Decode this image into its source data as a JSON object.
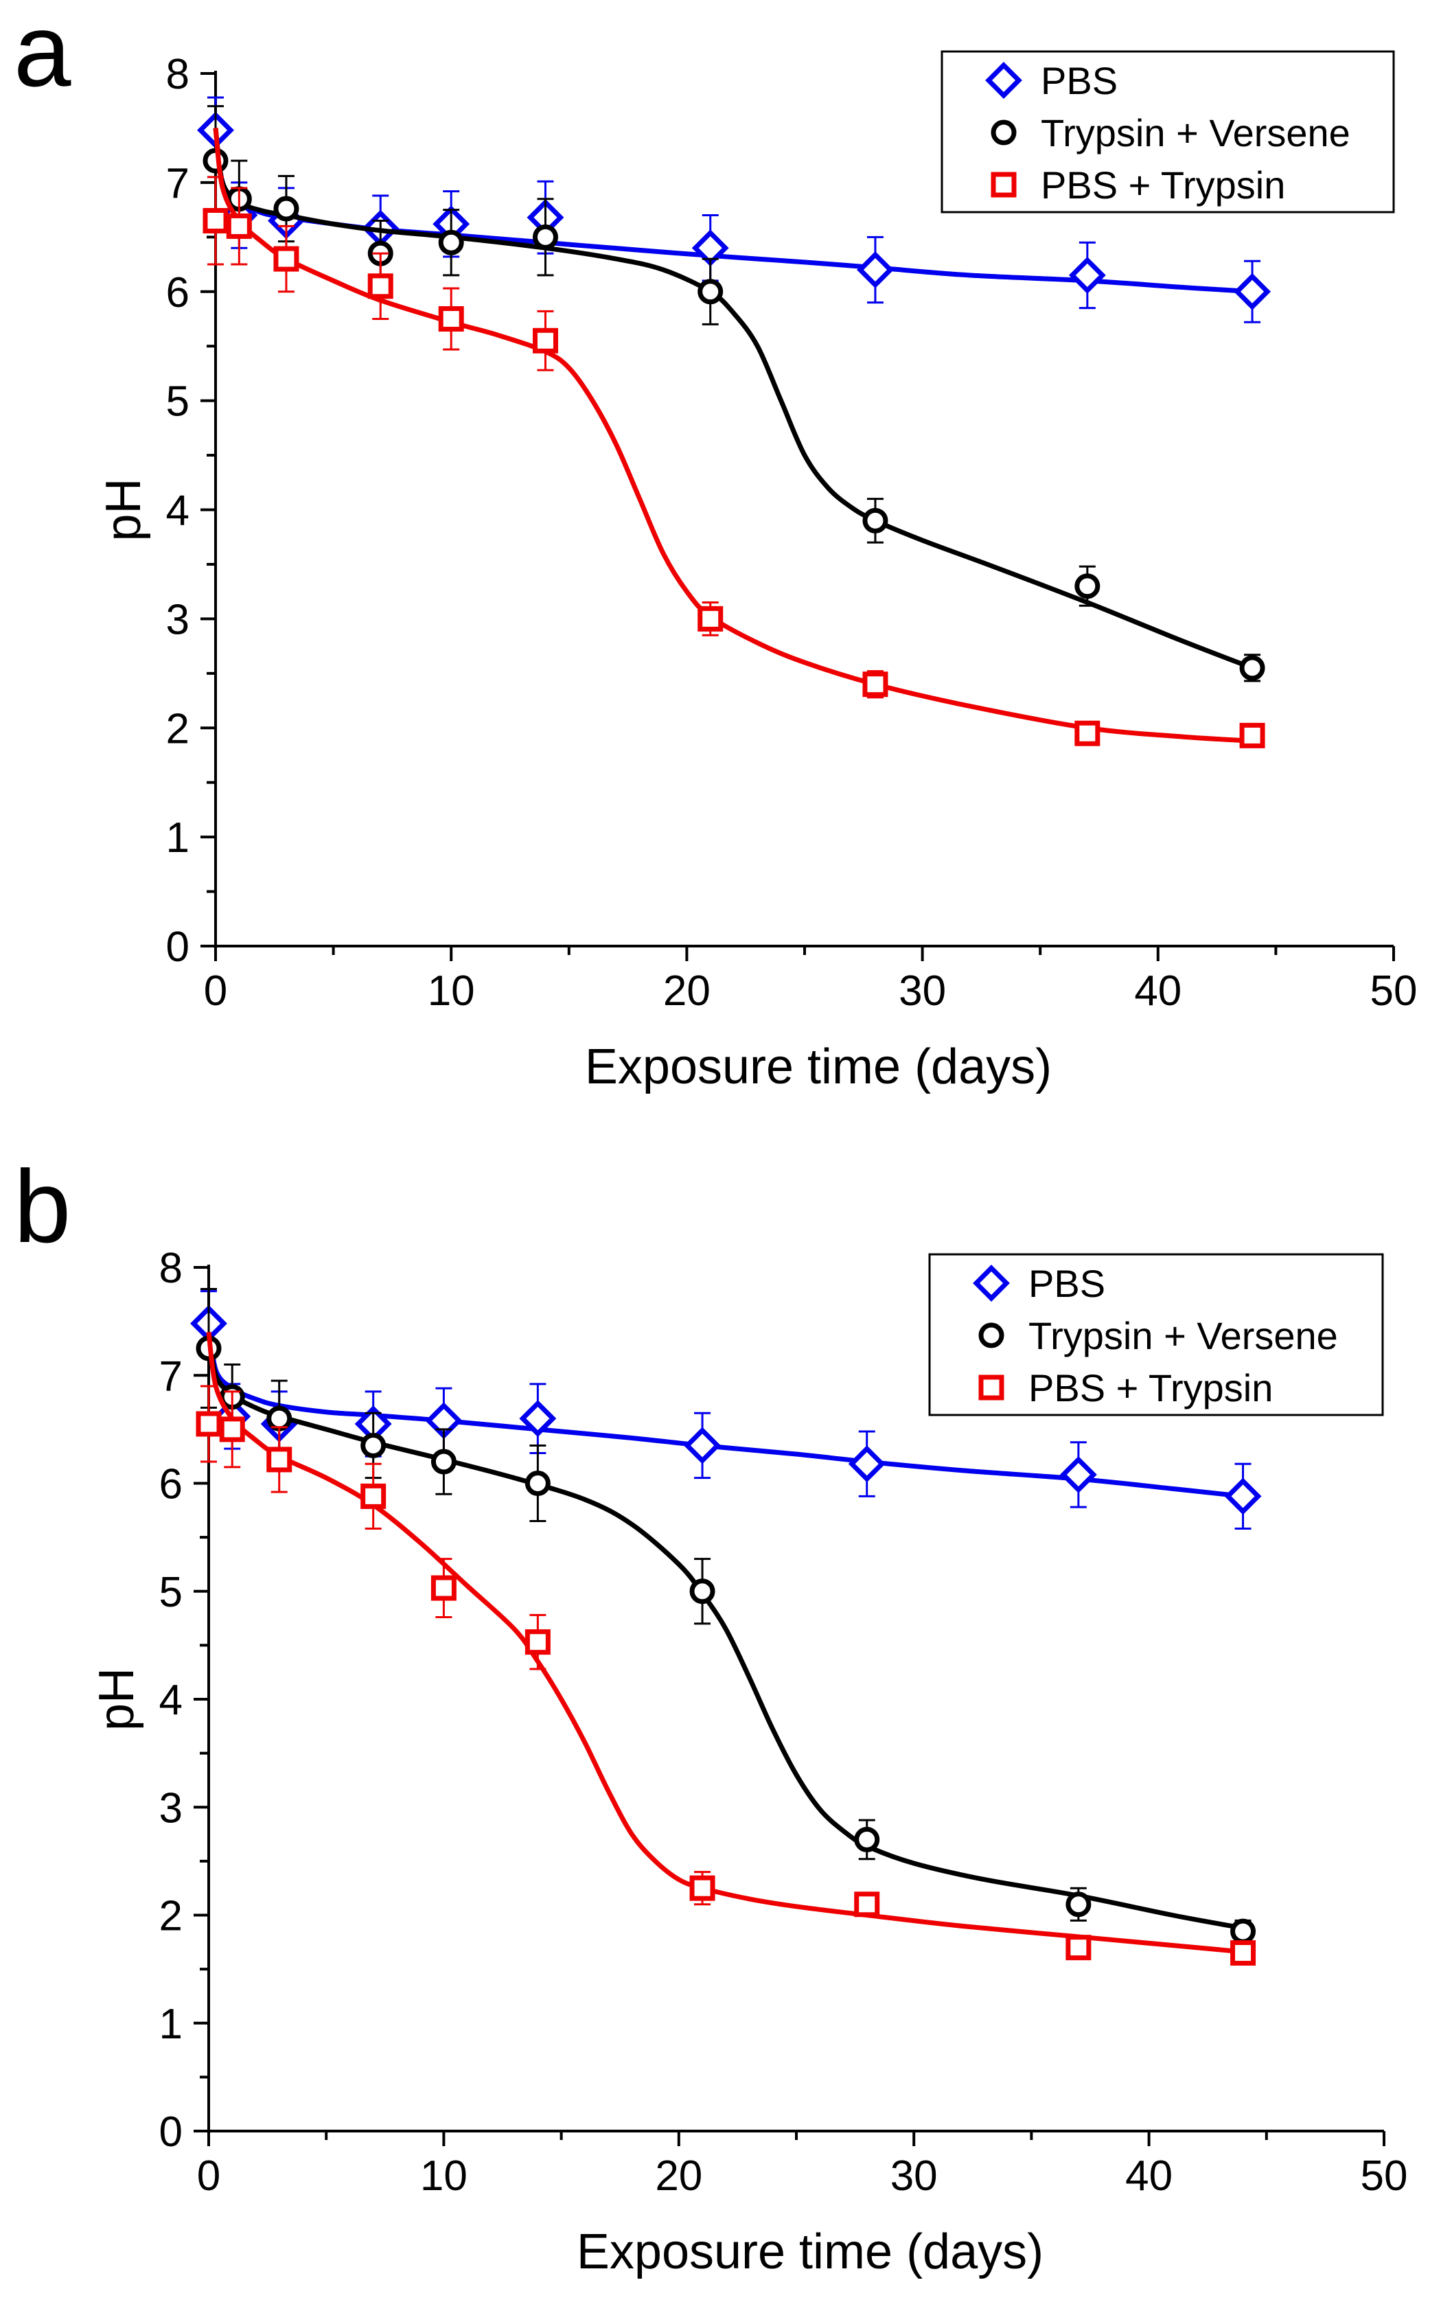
{
  "chart_data": [
    {
      "panel_label": "a",
      "type": "line",
      "title": "",
      "xlabel": "Exposure time (days)",
      "ylabel": "pH",
      "xlim": [
        0,
        50
      ],
      "ylim": [
        0,
        8
      ],
      "xticks": [
        "0",
        "10",
        "20",
        "30",
        "40",
        "50"
      ],
      "yticks": [
        "0",
        "1",
        "2",
        "3",
        "4",
        "5",
        "6",
        "7",
        "8"
      ],
      "legend_position": "top-right",
      "series": [
        {
          "name": "PBS",
          "color": "#0000ee",
          "marker": "diamond",
          "x": [
            0,
            1,
            3,
            7,
            10,
            14,
            21,
            28,
            37,
            44
          ],
          "y": [
            7.48,
            6.7,
            6.65,
            6.58,
            6.62,
            6.68,
            6.4,
            6.2,
            6.15,
            6.0
          ],
          "err": [
            0.3,
            0.3,
            0.3,
            0.3,
            0.3,
            0.33,
            0.3,
            0.3,
            0.3,
            0.28
          ],
          "fit_x": [
            0,
            0.3,
            1,
            2,
            3,
            5,
            7,
            10,
            14,
            18,
            21,
            25,
            28,
            32,
            37,
            41,
            44
          ],
          "fit_y": [
            7.5,
            7.0,
            6.82,
            6.72,
            6.68,
            6.62,
            6.57,
            6.52,
            6.45,
            6.38,
            6.33,
            6.27,
            6.22,
            6.15,
            6.1,
            6.04,
            6.0
          ]
        },
        {
          "name": "Trypsin + Versene",
          "color": "#000000",
          "marker": "circle",
          "x": [
            0,
            1,
            3,
            7,
            10,
            14,
            21,
            28,
            37,
            44
          ],
          "y": [
            7.2,
            6.85,
            6.76,
            6.35,
            6.45,
            6.5,
            6.0,
            3.9,
            3.3,
            2.55
          ],
          "err": [
            0.5,
            0.35,
            0.3,
            0.3,
            0.3,
            0.35,
            0.3,
            0.2,
            0.18,
            0.12
          ],
          "fit_x": [
            0,
            0.3,
            1,
            2,
            3,
            5,
            7,
            10,
            14,
            17,
            19,
            21,
            22,
            23,
            24,
            25,
            26,
            27,
            28,
            30,
            33,
            37,
            41,
            44
          ],
          "fit_y": [
            7.5,
            7.0,
            6.82,
            6.74,
            6.7,
            6.62,
            6.56,
            6.5,
            6.4,
            6.3,
            6.2,
            6.0,
            5.8,
            5.5,
            5.0,
            4.5,
            4.2,
            4.02,
            3.9,
            3.72,
            3.48,
            3.15,
            2.8,
            2.55
          ]
        },
        {
          "name": "PBS + Trypsin",
          "color": "#ee0000",
          "marker": "square",
          "x": [
            0,
            1,
            3,
            7,
            10,
            14,
            21,
            28,
            37,
            44
          ],
          "y": [
            6.65,
            6.6,
            6.3,
            6.05,
            5.75,
            5.55,
            3.0,
            2.4,
            1.95,
            1.93
          ],
          "err": [
            0.4,
            0.35,
            0.3,
            0.3,
            0.28,
            0.27,
            0.15,
            0.12,
            0.1,
            0.08
          ],
          "fit_x": [
            0,
            0.3,
            1,
            2,
            3,
            5,
            7,
            10,
            12,
            14,
            15,
            16,
            17,
            18,
            19,
            20,
            21,
            23,
            25,
            28,
            32,
            37,
            41,
            44
          ],
          "fit_y": [
            7.5,
            6.95,
            6.65,
            6.45,
            6.3,
            6.1,
            5.92,
            5.72,
            5.6,
            5.45,
            5.3,
            5.0,
            4.6,
            4.1,
            3.6,
            3.25,
            3.02,
            2.78,
            2.6,
            2.4,
            2.2,
            2.0,
            1.92,
            1.88
          ]
        }
      ]
    },
    {
      "panel_label": "b",
      "type": "line",
      "title": "",
      "xlabel": "Exposure time (days)",
      "ylabel": "pH",
      "xlim": [
        0,
        50
      ],
      "ylim": [
        0,
        8
      ],
      "xticks": [
        "0",
        "10",
        "20",
        "30",
        "40",
        "50"
      ],
      "yticks": [
        "0",
        "1",
        "2",
        "3",
        "4",
        "5",
        "6",
        "7",
        "8"
      ],
      "legend_position": "top-right",
      "series": [
        {
          "name": "PBS",
          "color": "#0000ee",
          "marker": "diamond",
          "x": [
            0,
            1,
            3,
            7,
            10,
            14,
            21,
            28,
            37,
            44
          ],
          "y": [
            7.48,
            6.62,
            6.55,
            6.55,
            6.58,
            6.6,
            6.35,
            6.18,
            6.08,
            5.88
          ],
          "err": [
            0.3,
            0.3,
            0.3,
            0.3,
            0.3,
            0.32,
            0.3,
            0.3,
            0.3,
            0.3
          ],
          "fit_x": [
            0,
            0.3,
            1,
            2,
            3,
            5,
            7,
            10,
            14,
            18,
            21,
            25,
            28,
            32,
            37,
            41,
            44
          ],
          "fit_y": [
            7.5,
            7.05,
            6.88,
            6.78,
            6.72,
            6.66,
            6.63,
            6.58,
            6.5,
            6.42,
            6.35,
            6.27,
            6.2,
            6.12,
            6.04,
            5.95,
            5.88
          ]
        },
        {
          "name": "Trypsin + Versene",
          "color": "#000000",
          "marker": "circle",
          "x": [
            0,
            1,
            3,
            7,
            10,
            14,
            21,
            28,
            37,
            44
          ],
          "y": [
            7.25,
            6.8,
            6.6,
            6.35,
            6.2,
            6.0,
            5.0,
            2.7,
            2.1,
            1.85
          ],
          "err": [
            0.55,
            0.3,
            0.35,
            0.3,
            0.3,
            0.35,
            0.3,
            0.18,
            0.15,
            0.1
          ],
          "fit_x": [
            0,
            0.3,
            1,
            2,
            3,
            5,
            7,
            10,
            13,
            16,
            18,
            20,
            21,
            22,
            23,
            24,
            25,
            26,
            27,
            28,
            30,
            33,
            37,
            41,
            44
          ],
          "fit_y": [
            7.4,
            7.0,
            6.82,
            6.7,
            6.62,
            6.5,
            6.38,
            6.22,
            6.05,
            5.85,
            5.62,
            5.25,
            4.98,
            4.65,
            4.2,
            3.72,
            3.3,
            2.98,
            2.78,
            2.64,
            2.48,
            2.33,
            2.18,
            2.0,
            1.88
          ]
        },
        {
          "name": "PBS + Trypsin",
          "color": "#ee0000",
          "marker": "square",
          "x": [
            0,
            1,
            3,
            7,
            10,
            14,
            21,
            28,
            37,
            44
          ],
          "y": [
            6.55,
            6.5,
            6.22,
            5.88,
            5.03,
            4.53,
            2.25,
            2.1,
            1.7,
            1.65
          ],
          "err": [
            0.35,
            0.35,
            0.3,
            0.3,
            0.27,
            0.25,
            0.15,
            0.1,
            0.08,
            0.08
          ],
          "fit_x": [
            0,
            0.3,
            1,
            2,
            3,
            5,
            7,
            9,
            11,
            13,
            14,
            15,
            16,
            17,
            18,
            19,
            20,
            21,
            23,
            25,
            28,
            32,
            37,
            41,
            44
          ],
          "fit_y": [
            7.4,
            6.9,
            6.6,
            6.4,
            6.25,
            6.05,
            5.8,
            5.45,
            5.05,
            4.65,
            4.35,
            4.0,
            3.6,
            3.15,
            2.75,
            2.5,
            2.33,
            2.25,
            2.15,
            2.08,
            2.0,
            1.9,
            1.8,
            1.72,
            1.66
          ]
        }
      ]
    }
  ]
}
